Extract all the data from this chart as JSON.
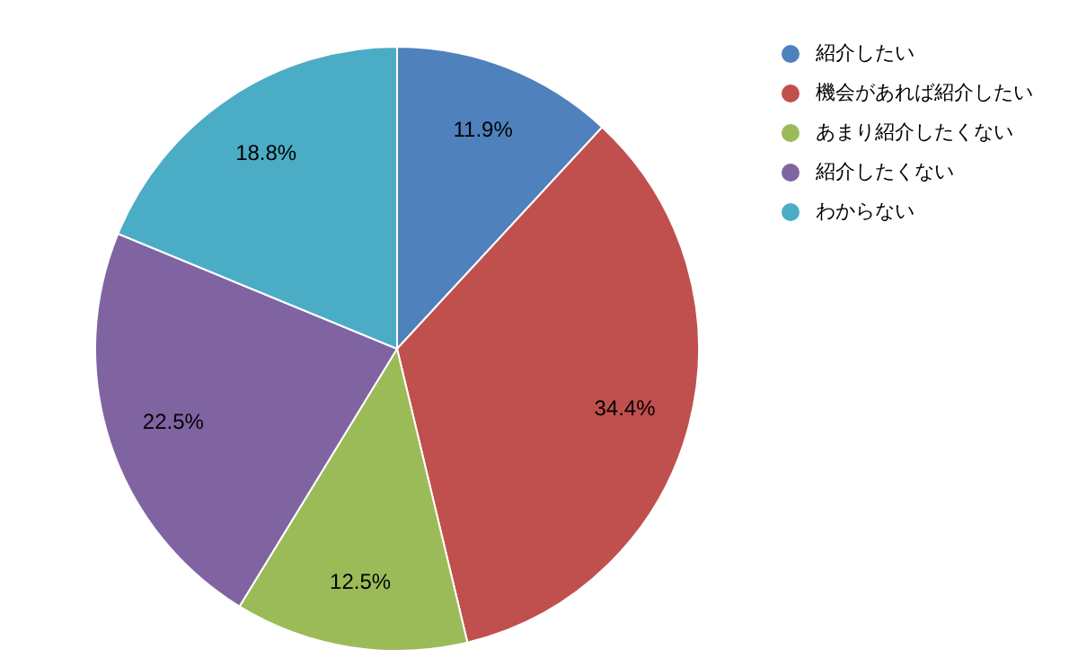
{
  "chart_data": {
    "type": "pie",
    "categories": [
      "紹介したい",
      "機会があれば紹介したい",
      "あまり紹介したくない",
      "紹介したくない",
      "わからない"
    ],
    "values": [
      11.9,
      34.4,
      12.5,
      22.5,
      18.8
    ],
    "colors": [
      "#4f81bd",
      "#c0504d",
      "#9bbb59",
      "#8064a2",
      "#4bacc6"
    ],
    "value_labels": [
      "11.9%",
      "34.4%",
      "12.5%",
      "22.5%",
      "18.8%"
    ],
    "legend": "right"
  }
}
